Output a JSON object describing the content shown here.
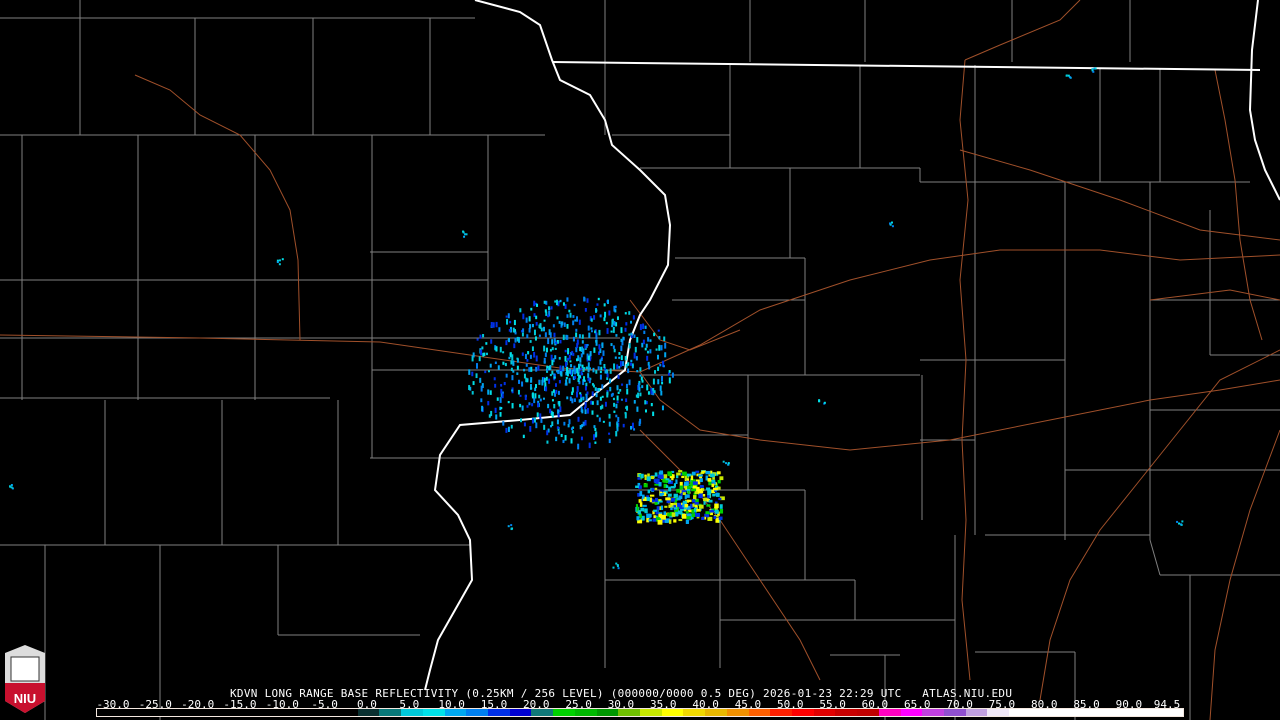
{
  "product_title": "KDVN LONG RANGE BASE REFLECTIVITY (0.25KM / 256 LEVEL) (000000/0000 0.5 DEG) 2026-01-23 22:29 UTC   ATLAS.NIU.EDU",
  "logo": {
    "text": "NIU",
    "icon": "niu-logo-icon"
  },
  "legend": {
    "unit_range": [
      -30.0,
      94.5
    ],
    "labels": [
      "-30.0",
      "-25.0",
      "-20.0",
      "-15.0",
      "-10.0",
      "-5.0",
      "0.0",
      "5.0",
      "10.0",
      "15.0",
      "20.0",
      "25.0",
      "30.0",
      "35.0",
      "40.0",
      "45.0",
      "50.0",
      "55.0",
      "60.0",
      "65.0",
      "70.0",
      "75.0",
      "80.0",
      "85.0",
      "90.0",
      "94.5"
    ],
    "colors": [
      "#000000",
      "#000000",
      "#000000",
      "#000000",
      "#000000",
      "#000000",
      "#000000",
      "#000000",
      "#000000",
      "#000000",
      "#000000",
      "#000000",
      "#0a3030",
      "#087878",
      "#00c8d8",
      "#00e0e8",
      "#00a8f0",
      "#0080f0",
      "#0030e8",
      "#0000d0",
      "#107878",
      "#00d000",
      "#00b800",
      "#009800",
      "#70c000",
      "#c8e800",
      "#ffff00",
      "#f0d800",
      "#e8b800",
      "#f09000",
      "#ff6000",
      "#ff2000",
      "#ff0000",
      "#e00000",
      "#c80000",
      "#c00000",
      "#ff00c0",
      "#ff00ff",
      "#c040e0",
      "#9050d0",
      "#c0a0e0",
      "#f0e8f8",
      "#ffffff",
      "#ffffff",
      "#ffffff",
      "#ffffff",
      "#ffffff",
      "#ffffff",
      "#ffffff",
      "#ffffff"
    ]
  },
  "map_colors": {
    "state_border": "#ffffff",
    "county_border": "#8a8a8a",
    "highway": "#a0502a"
  }
}
